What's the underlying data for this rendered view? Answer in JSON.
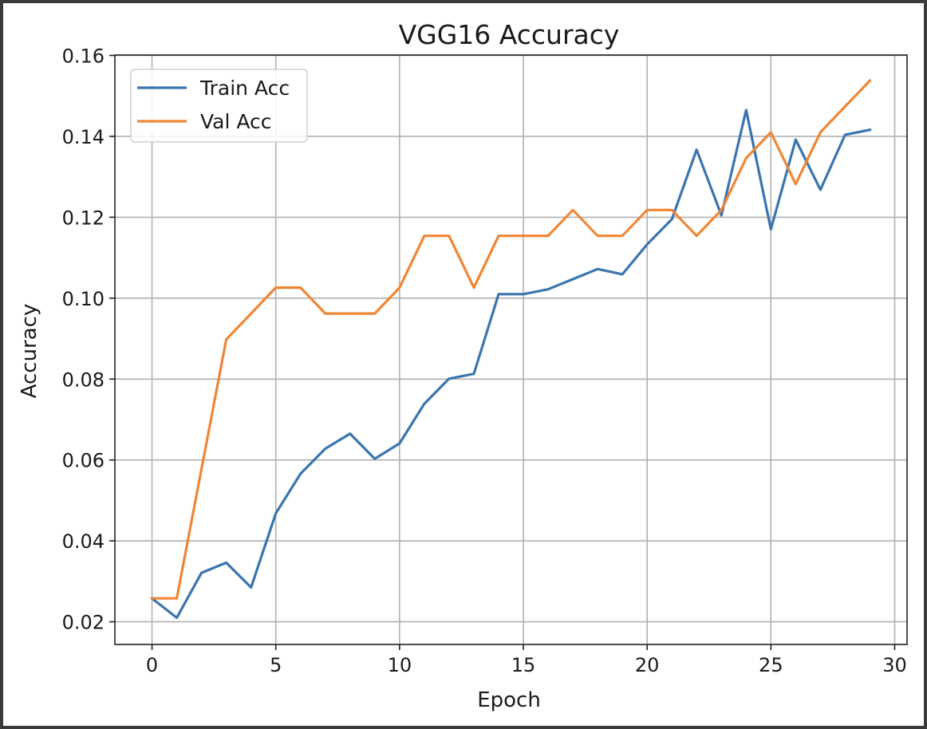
{
  "chart_data": {
    "type": "line",
    "title": "VGG16 Accuracy",
    "xlabel": "Epoch",
    "ylabel": "Accuracy",
    "xlim": [
      -1.5,
      30.5
    ],
    "ylim": [
      0.0144,
      0.1601
    ],
    "grid": true,
    "legend_position": "top-left",
    "x_ticks": [
      0,
      5,
      10,
      15,
      20,
      25,
      30
    ],
    "x_tick_labels": [
      "0",
      "5",
      "10",
      "15",
      "20",
      "25",
      "30"
    ],
    "y_ticks": [
      0.02,
      0.04,
      0.06,
      0.08,
      0.1,
      0.12,
      0.14,
      0.16
    ],
    "y_tick_labels": [
      "0.02",
      "0.04",
      "0.06",
      "0.08",
      "0.10",
      "0.12",
      "0.14",
      "0.16"
    ],
    "x": [
      0,
      1,
      2,
      3,
      4,
      5,
      6,
      7,
      8,
      9,
      10,
      11,
      12,
      13,
      14,
      15,
      16,
      17,
      18,
      19,
      20,
      21,
      22,
      23,
      24,
      25,
      26,
      27,
      28,
      29
    ],
    "series": [
      {
        "name": "Train Acc",
        "color": "#3b75af",
        "values": [
          0.0258,
          0.021,
          0.0321,
          0.0346,
          0.0285,
          0.0468,
          0.0566,
          0.0628,
          0.0665,
          0.0603,
          0.0641,
          0.0739,
          0.0801,
          0.0813,
          0.101,
          0.101,
          0.1022,
          0.1047,
          0.1072,
          0.1059,
          0.1133,
          0.1195,
          0.1367,
          0.1205,
          0.1465,
          0.117,
          0.1392,
          0.1268,
          0.1404,
          0.1416
        ]
      },
      {
        "name": "Val Acc",
        "color": "#ef8636",
        "values": [
          0.0258,
          0.0258,
          0.0578,
          0.0898,
          0.0962,
          0.1026,
          0.1026,
          0.0962,
          0.0962,
          0.0962,
          0.1026,
          0.1154,
          0.1154,
          0.1026,
          0.1154,
          0.1154,
          0.1154,
          0.1218,
          0.1154,
          0.1154,
          0.1218,
          0.1218,
          0.1154,
          0.1218,
          0.1346,
          0.141,
          0.1282,
          0.141,
          0.1474,
          0.1538
        ]
      }
    ]
  }
}
